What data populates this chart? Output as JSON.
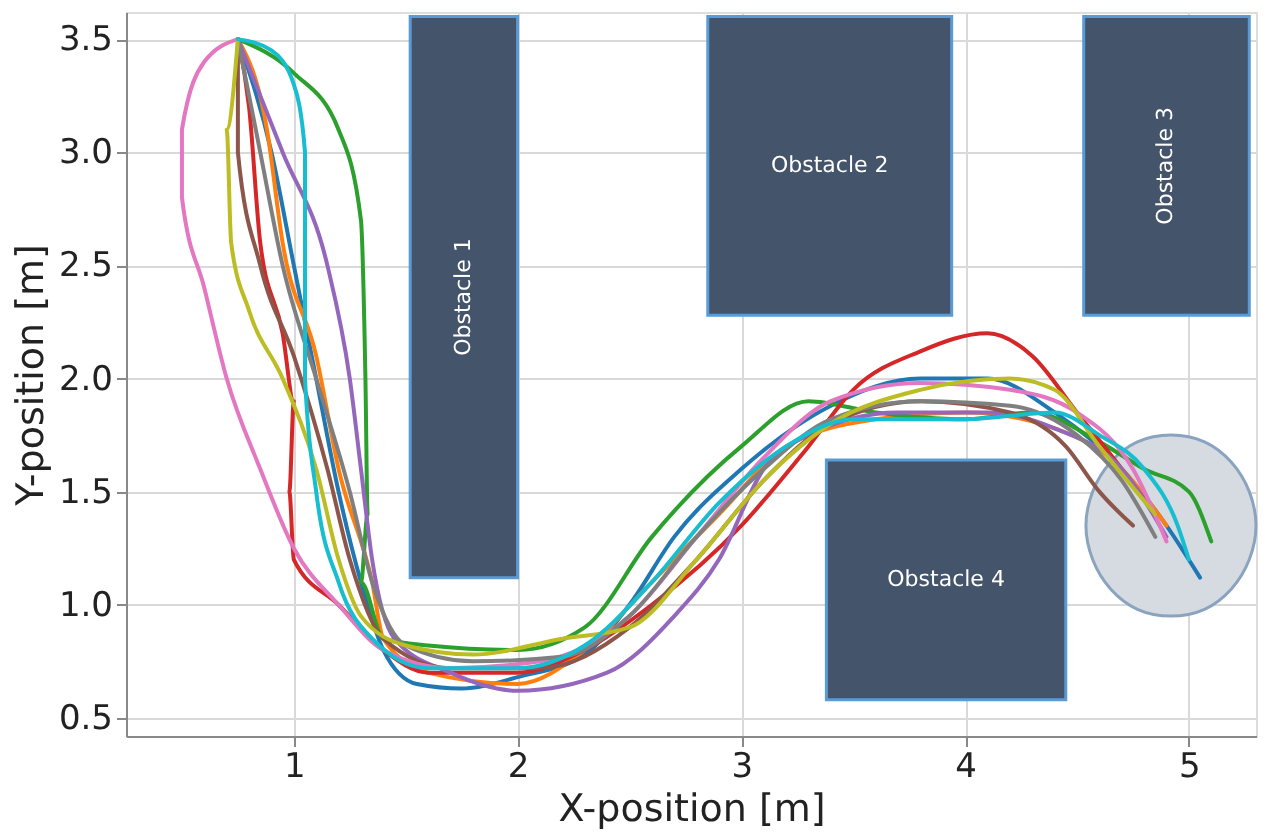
{
  "chart_data": {
    "type": "line",
    "xlabel": "X-position [m]",
    "ylabel": "Y-position [m]",
    "xlim": [
      0.25,
      5.3
    ],
    "ylim": [
      0.42,
      3.62
    ],
    "xticks": [
      1,
      2,
      3,
      4,
      5
    ],
    "yticks": [
      {
        "value": 0.5,
        "label": "0.5"
      },
      {
        "value": 1,
        "label": "1.0"
      },
      {
        "value": 1.5,
        "label": "1.5"
      },
      {
        "value": 2,
        "label": "2.0"
      },
      {
        "value": 2.5,
        "label": "2.5"
      },
      {
        "value": 3,
        "label": "3.0"
      },
      {
        "value": 3.5,
        "label": "3.5"
      }
    ],
    "grid": true,
    "marker": "none",
    "line_style": "solid",
    "annotations": [
      "Obstacle 1",
      "Obstacle 2",
      "Obstacle 3",
      "Obstacle 4"
    ],
    "series": [
      {
        "type": "area",
        "color": "#44546a",
        "x": [
          1.52,
          2.0,
          2.0,
          1.52
        ],
        "values": [
          1.12,
          1.12,
          3.6,
          3.6
        ]
      },
      {
        "type": "area",
        "color": "#44546a",
        "x": [
          2.85,
          3.94,
          3.94,
          2.85
        ],
        "values": [
          2.28,
          2.28,
          3.6,
          3.6
        ]
      },
      {
        "type": "area",
        "color": "#44546a",
        "x": [
          4.53,
          5.27,
          5.27,
          4.53
        ],
        "values": [
          2.28,
          2.28,
          3.6,
          3.6
        ]
      },
      {
        "type": "area",
        "color": "#44546a",
        "x": [
          3.38,
          4.45,
          4.45,
          3.38
        ],
        "values": [
          0.58,
          0.58,
          1.64,
          1.64
        ]
      },
      {
        "type": "area",
        "color": "#d6dbe2",
        "x": [
          5.3,
          5.27,
          5.19,
          5.07,
          4.92,
          4.77,
          4.65,
          4.57,
          4.54,
          4.57,
          4.65,
          4.77,
          4.92,
          5.07,
          5.19,
          5.27
        ],
        "values": [
          1.35,
          1.5,
          1.63,
          1.72,
          1.75,
          1.72,
          1.63,
          1.5,
          1.35,
          1.2,
          1.07,
          0.98,
          0.95,
          0.98,
          1.07,
          1.2
        ]
      },
      {
        "color": "#1f77b4",
        "x": [
          0.75,
          0.9,
          1.0,
          1.1,
          1.2,
          1.3,
          1.4,
          1.55,
          1.75,
          2.0,
          2.3,
          2.5,
          2.7,
          3.0,
          3.4,
          3.8,
          4.1,
          4.4,
          4.7,
          4.9,
          5.05
        ],
        "values": [
          3.5,
          3.0,
          2.5,
          2.0,
          1.5,
          1.1,
          0.8,
          0.65,
          0.63,
          0.68,
          0.78,
          1.0,
          1.3,
          1.6,
          1.88,
          2.0,
          2.0,
          1.85,
          1.6,
          1.35,
          1.12
        ]
      },
      {
        "color": "#ff7f0e",
        "x": [
          0.75,
          0.88,
          0.95,
          1.1,
          1.2,
          1.35,
          1.4,
          1.6,
          2.0,
          2.3,
          2.6,
          2.9,
          3.2,
          3.6,
          4.0,
          4.4,
          4.7,
          4.9
        ],
        "values": [
          3.5,
          3.1,
          2.6,
          2.1,
          1.6,
          1.1,
          0.85,
          0.7,
          0.65,
          0.8,
          1.1,
          1.4,
          1.7,
          1.82,
          1.85,
          1.78,
          1.6,
          1.35
        ]
      },
      {
        "color": "#2ca02c",
        "x": [
          0.75,
          1.0,
          1.2,
          1.3,
          1.32,
          1.33,
          1.3,
          1.4,
          1.6,
          2.0,
          2.3,
          2.6,
          3.0,
          3.3,
          3.6,
          4.0,
          4.3,
          4.6,
          4.8,
          5.0,
          5.1
        ],
        "values": [
          3.5,
          3.35,
          3.1,
          2.7,
          2.0,
          1.4,
          1.1,
          0.85,
          0.82,
          0.8,
          0.9,
          1.3,
          1.7,
          1.9,
          1.85,
          1.82,
          1.85,
          1.72,
          1.6,
          1.5,
          1.28
        ]
      },
      {
        "color": "#d62728",
        "x": [
          0.75,
          0.8,
          0.85,
          0.95,
          1.0,
          0.98,
          1.0,
          1.2,
          1.4,
          1.6,
          2.0,
          2.3,
          2.6,
          3.0,
          3.3,
          3.5,
          3.8,
          4.1,
          4.3,
          4.5,
          4.7,
          4.85
        ],
        "values": [
          3.5,
          3.2,
          2.6,
          2.2,
          1.9,
          1.5,
          1.2,
          1.0,
          0.8,
          0.7,
          0.7,
          0.8,
          1.0,
          1.35,
          1.7,
          1.95,
          2.12,
          2.2,
          2.1,
          1.85,
          1.6,
          1.4
        ]
      },
      {
        "color": "#9467bd",
        "x": [
          0.75,
          0.95,
          1.15,
          1.25,
          1.3,
          1.35,
          1.45,
          1.7,
          2.0,
          2.4,
          2.7,
          2.9,
          3.1,
          3.3,
          3.7,
          4.1,
          4.4,
          4.7,
          4.9
        ],
        "values": [
          3.5,
          3.0,
          2.5,
          2.0,
          1.6,
          1.2,
          0.85,
          0.7,
          0.62,
          0.7,
          0.95,
          1.2,
          1.6,
          1.75,
          1.85,
          1.85,
          1.78,
          1.6,
          1.3
        ]
      },
      {
        "color": "#8c564b",
        "x": [
          0.75,
          0.75,
          0.85,
          1.0,
          1.15,
          1.25,
          1.4,
          1.7,
          2.1,
          2.5,
          2.8,
          3.1,
          3.4,
          3.8,
          4.2,
          4.45,
          4.6,
          4.75
        ],
        "values": [
          3.5,
          3.0,
          2.5,
          2.1,
          1.6,
          1.2,
          0.85,
          0.72,
          0.72,
          0.9,
          1.2,
          1.55,
          1.8,
          1.9,
          1.85,
          1.7,
          1.5,
          1.35
        ]
      },
      {
        "color": "#e377c2",
        "x": [
          0.75,
          0.6,
          0.5,
          0.5,
          0.6,
          0.7,
          0.85,
          1.0,
          1.2,
          1.4,
          1.7,
          2.1,
          2.5,
          2.8,
          3.1,
          3.4,
          3.8,
          4.2,
          4.5,
          4.75,
          4.9
        ],
        "values": [
          3.5,
          3.4,
          3.1,
          2.8,
          2.4,
          2.0,
          1.6,
          1.25,
          1.0,
          0.8,
          0.72,
          0.75,
          0.95,
          1.3,
          1.65,
          1.9,
          1.98,
          1.95,
          1.85,
          1.6,
          1.28
        ]
      },
      {
        "color": "#7f7f7f",
        "x": [
          0.75,
          0.85,
          0.95,
          1.1,
          1.25,
          1.35,
          1.5,
          1.8,
          2.2,
          2.5,
          2.8,
          3.1,
          3.4,
          3.8,
          4.2,
          4.5,
          4.7,
          4.85
        ],
        "values": [
          3.5,
          3.0,
          2.5,
          2.0,
          1.5,
          1.1,
          0.82,
          0.75,
          0.77,
          0.95,
          1.3,
          1.6,
          1.82,
          1.9,
          1.88,
          1.75,
          1.55,
          1.3
        ]
      },
      {
        "color": "#bcbd22",
        "x": [
          0.75,
          0.7,
          0.72,
          0.8,
          0.95,
          1.1,
          1.2,
          1.3,
          1.5,
          1.8,
          2.2,
          2.5,
          2.8,
          3.1,
          3.4,
          3.8,
          4.2,
          4.4,
          4.6,
          4.85
        ],
        "values": [
          3.5,
          3.1,
          2.6,
          2.3,
          2.0,
          1.6,
          1.2,
          0.95,
          0.82,
          0.78,
          0.85,
          0.9,
          1.2,
          1.55,
          1.8,
          1.95,
          2.0,
          1.95,
          1.7,
          1.4
        ]
      },
      {
        "color": "#17becf",
        "x": [
          0.75,
          0.9,
          1.0,
          1.05,
          1.05,
          1.05,
          1.1,
          1.2,
          1.35,
          1.6,
          2.0,
          2.3,
          2.6,
          2.9,
          3.2,
          3.5,
          4.0,
          4.4,
          4.6,
          4.8,
          4.95,
          5.0
        ],
        "values": [
          3.5,
          3.45,
          3.3,
          3.0,
          2.5,
          2.0,
          1.5,
          1.1,
          0.85,
          0.72,
          0.72,
          0.82,
          1.1,
          1.45,
          1.7,
          1.82,
          1.82,
          1.85,
          1.75,
          1.6,
          1.35,
          1.2
        ]
      }
    ]
  }
}
